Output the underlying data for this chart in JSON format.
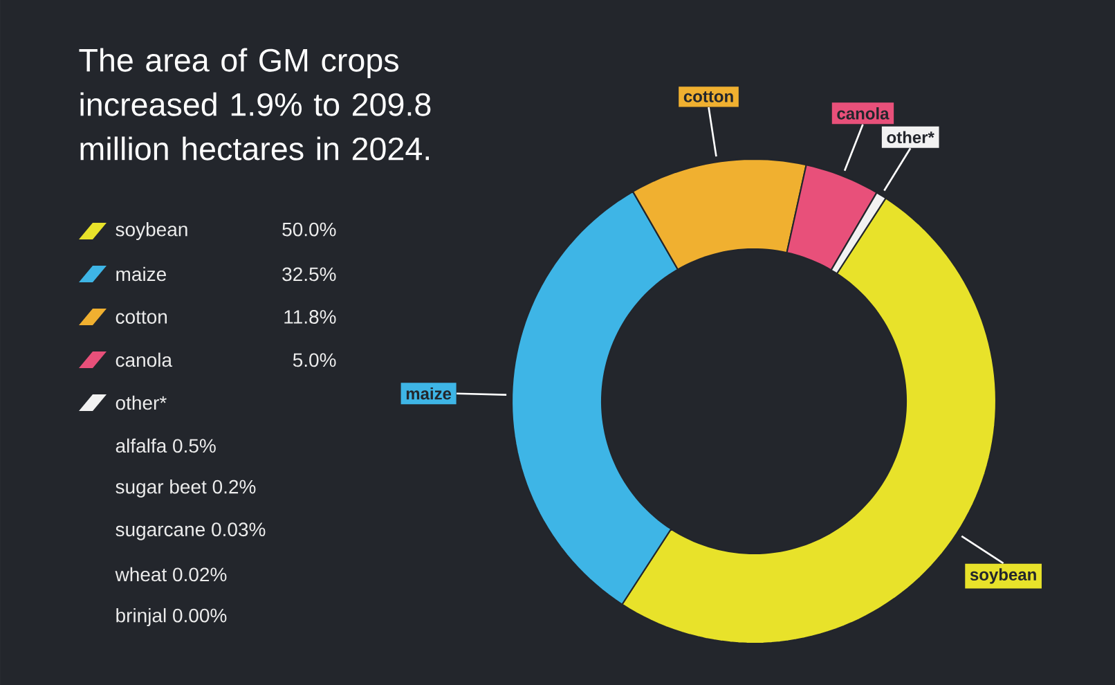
{
  "chart_data": {
    "type": "donut",
    "title": "The area of GM crops increased 1.9% to 209.8 million hectares in 2024.",
    "categories": [
      "soybean",
      "maize",
      "cotton",
      "canola",
      "other*"
    ],
    "values": [
      50.0,
      32.5,
      11.8,
      5.0,
      0.7
    ],
    "colors": [
      "#e8e22a",
      "#3eb5e6",
      "#f0b030",
      "#e8507a",
      "#f2f2f2"
    ],
    "value_labels": [
      "50.0%",
      "32.5%",
      "11.8%",
      "5.0%",
      null
    ],
    "legend": "left",
    "annotations": [
      "alfalfa 0.5%",
      "sugar beet 0.2%",
      "sugarcane 0.03%",
      "wheat 0.02%",
      "brinjal 0.00%"
    ]
  }
}
